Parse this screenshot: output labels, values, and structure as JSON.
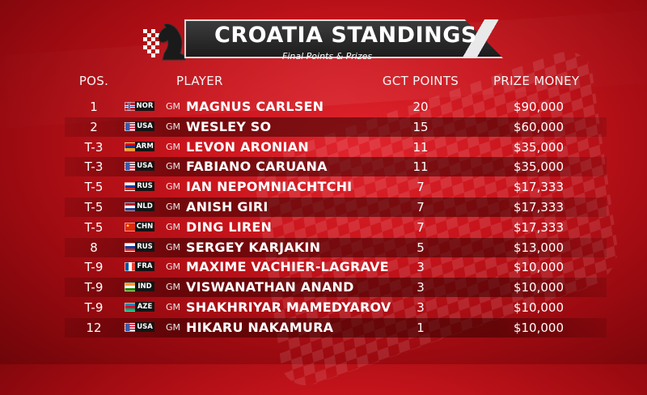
{
  "header": {
    "title": "CROATIA STANDINGS",
    "subtitle": "Final Points & Prizes"
  },
  "columns": {
    "pos": "POS.",
    "player": "PLAYER",
    "points": "GCT POINTS",
    "prize": "PRIZE MONEY"
  },
  "colors": {
    "NOR": "#ba1f2e",
    "USA": "#3b5aa8",
    "ARM": "#d22a1f",
    "RUS": "#2e4fa0",
    "NLD": "#2145a0",
    "CHN": "#de2910",
    "FRA": "#2452a3",
    "IND": "#ff9933",
    "AZE": "#1e9bd7"
  },
  "rows": [
    {
      "pos": "1",
      "country": "NOR",
      "title": "GM",
      "name": "MAGNUS CARLSEN",
      "points": "20",
      "prize": "$90,000"
    },
    {
      "pos": "2",
      "country": "USA",
      "title": "GM",
      "name": "WESLEY SO",
      "points": "15",
      "prize": "$60,000"
    },
    {
      "pos": "T-3",
      "country": "ARM",
      "title": "GM",
      "name": "LEVON ARONIAN",
      "points": "11",
      "prize": "$35,000"
    },
    {
      "pos": "T-3",
      "country": "USA",
      "title": "GM",
      "name": "FABIANO CARUANA",
      "points": "11",
      "prize": "$35,000"
    },
    {
      "pos": "T-5",
      "country": "RUS",
      "title": "GM",
      "name": "IAN NEPOMNIACHTCHI",
      "points": "7",
      "prize": "$17,333"
    },
    {
      "pos": "T-5",
      "country": "NLD",
      "title": "GM",
      "name": "ANISH GIRI",
      "points": "7",
      "prize": "$17,333"
    },
    {
      "pos": "T-5",
      "country": "CHN",
      "title": "GM",
      "name": "DING LIREN",
      "points": "7",
      "prize": "$17,333"
    },
    {
      "pos": "8",
      "country": "RUS",
      "title": "GM",
      "name": "SERGEY KARJAKIN",
      "points": "5",
      "prize": "$13,000"
    },
    {
      "pos": "T-9",
      "country": "FRA",
      "title": "GM",
      "name": "MAXIME VACHIER-LAGRAVE",
      "points": "3",
      "prize": "$10,000"
    },
    {
      "pos": "T-9",
      "country": "IND",
      "title": "GM",
      "name": "VISWANATHAN ANAND",
      "points": "3",
      "prize": "$10,000"
    },
    {
      "pos": "T-9",
      "country": "AZE",
      "title": "GM",
      "name": "SHAKHRIYAR MAMEDYAROV",
      "points": "3",
      "prize": "$10,000"
    },
    {
      "pos": "12",
      "country": "USA",
      "title": "GM",
      "name": "HIKARU NAKAMURA",
      "points": "1",
      "prize": "$10,000"
    }
  ]
}
